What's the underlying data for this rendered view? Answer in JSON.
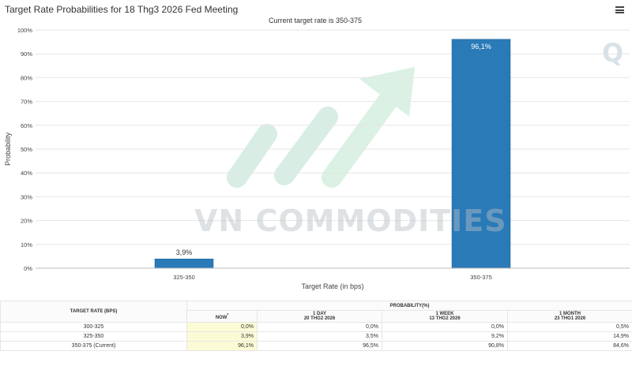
{
  "header": {
    "title": "Target Rate Probabilities for 18 Thg3 2026 Fed Meeting"
  },
  "icons": {
    "menu": "hamburger-menu-icon",
    "brand_watermark": "q-logo-icon",
    "arrow_watermark": "growth-arrow-logo-icon"
  },
  "watermark": {
    "text": "VN COMMODITIES",
    "logo_letter": "Q"
  },
  "chart_data": {
    "type": "bar",
    "subtitle": "Current target rate is 350-375",
    "categories": [
      "325-350",
      "350-375"
    ],
    "values": [
      3.9,
      96.1
    ],
    "value_labels": [
      "3,9%",
      "96,1%"
    ],
    "xlabel": "Target Rate (in bps)",
    "ylabel": "Probability",
    "ylim": [
      0,
      100
    ],
    "yticks": [
      "0%",
      "10%",
      "20%",
      "30%",
      "40%",
      "50%",
      "60%",
      "70%",
      "80%",
      "90%",
      "100%"
    ],
    "grid": true,
    "bar_color": "#2a7ab8"
  },
  "table": {
    "target_rate_header": "TARGET RATE (BPS)",
    "probability_header": "PROBABILITY(%)",
    "columns": [
      {
        "label": "NOW",
        "marker": "*",
        "date": ""
      },
      {
        "label": "1 DAY",
        "date": "20 THG2 2026"
      },
      {
        "label": "1 WEEK",
        "date": "13 THG2 2026"
      },
      {
        "label": "1 MONTH",
        "date": "23 THG1 2026"
      }
    ],
    "rows": [
      {
        "rate": "300-325",
        "values": [
          "0,0%",
          "0,0%",
          "0,0%",
          "0,5%"
        ]
      },
      {
        "rate": "325-350",
        "values": [
          "3,9%",
          "3,5%",
          "9,2%",
          "14,9%"
        ]
      },
      {
        "rate": "350-375 (Current)",
        "values": [
          "96,1%",
          "96,5%",
          "90,8%",
          "84,6%"
        ]
      }
    ]
  }
}
